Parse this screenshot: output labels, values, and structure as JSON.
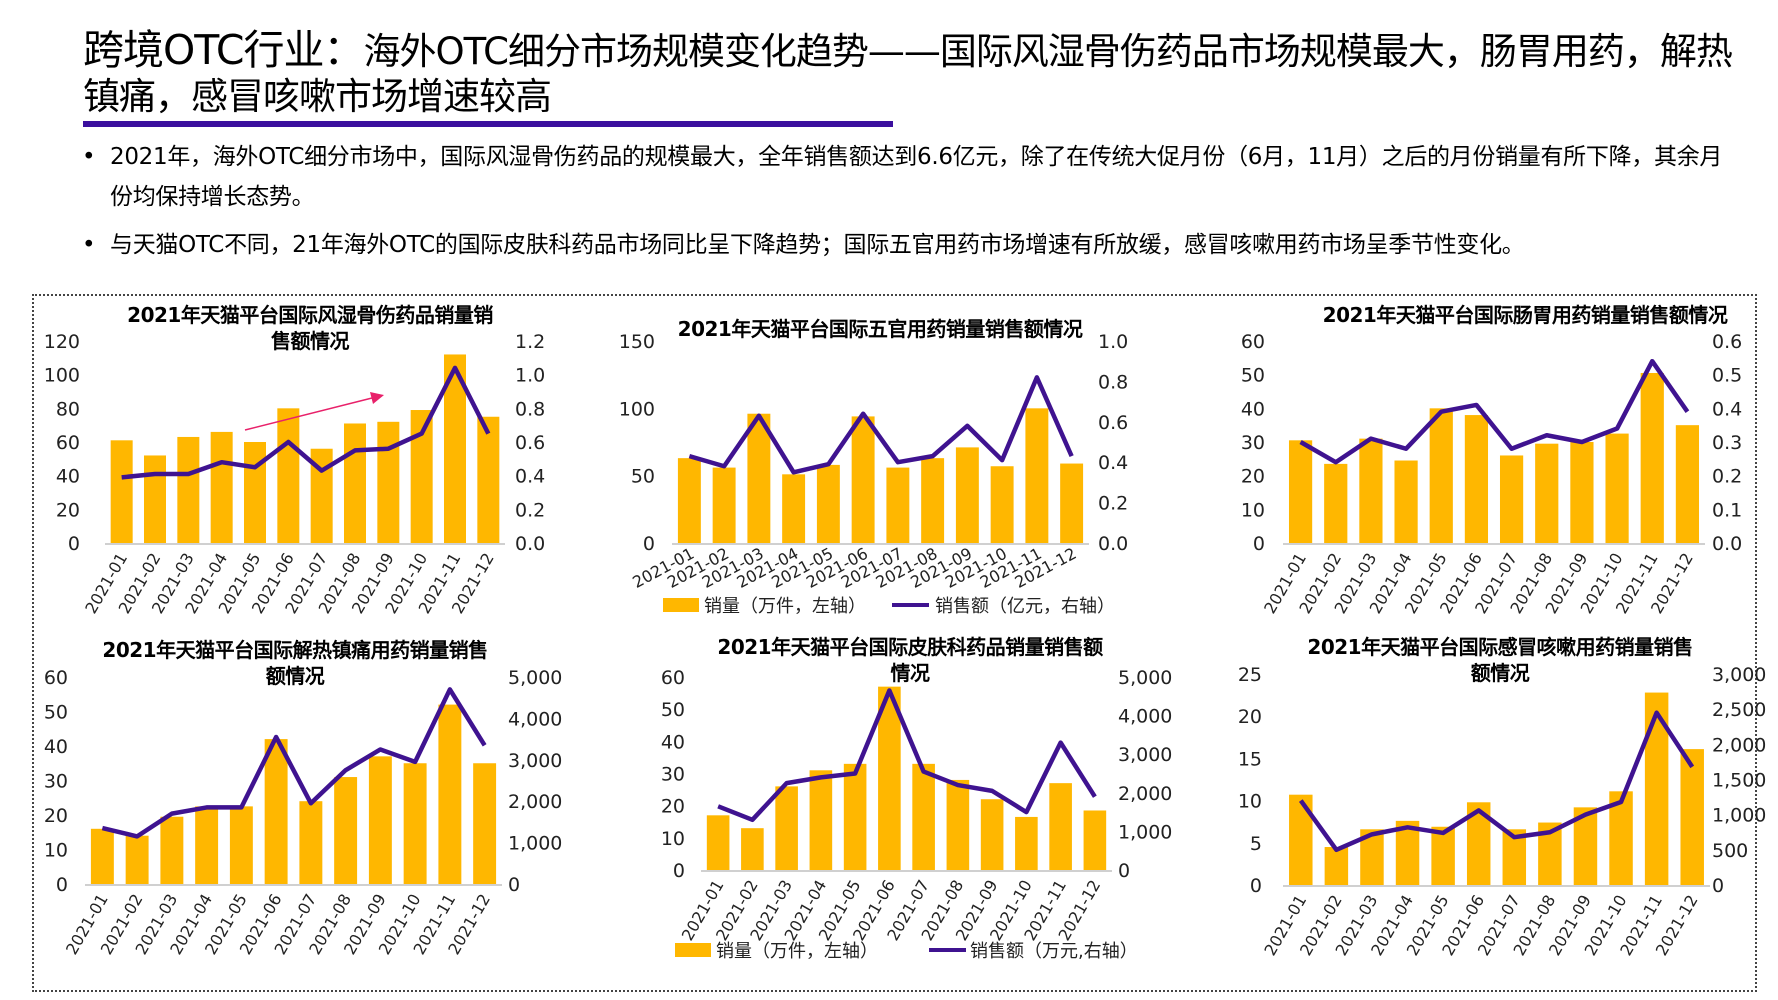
{
  "header": {
    "title_lead": "跨境OTC行业：",
    "title_rest": "海外OTC细分市场规模变化趋势——国际风湿骨伤药品市场规模最大，肠胃用药，解热镇痛，感冒咳嗽市场增速较高"
  },
  "bullets": [
    {
      "bullet": "•",
      "text": "2021年，海外OTC细分市场中，国际风湿骨伤药品的规模最大，全年销售额达到6.6亿元，除了在传统大促月份（6月，11月）之后的月份销量有所下降，其余月份均保持增长态势。"
    },
    {
      "bullet": "•",
      "text": "与天猫OTC不同，21年海外OTC的国际皮肤科药品市场同比呈下降趋势；国际五官用药市场增速有所放缓，感冒咳嗽用药市场呈季节性变化。"
    }
  ],
  "colors": {
    "bar": "#FFB700",
    "line": "#3F1390",
    "accent": "#3B0F9E",
    "arrow": "#E8216A"
  },
  "chart_data": [
    {
      "type": "bar+line",
      "title": "2021年天猫平台国际风湿骨伤药品销量销售额情况",
      "categories": [
        "2021-01",
        "2021-02",
        "2021-03",
        "2021-04",
        "2021-05",
        "2021-06",
        "2021-07",
        "2021-08",
        "2021-09",
        "2021-10",
        "2021-11",
        "2021-12"
      ],
      "series": [
        {
          "type": "bar",
          "axis": "left",
          "values": [
            61,
            52,
            63,
            66,
            60,
            80,
            56,
            71,
            72,
            79,
            112,
            75
          ]
        },
        {
          "type": "line",
          "axis": "right",
          "values": [
            0.39,
            0.41,
            0.41,
            0.48,
            0.45,
            0.6,
            0.43,
            0.55,
            0.56,
            0.65,
            1.04,
            0.65
          ]
        }
      ],
      "ylim_left": [
        0,
        120
      ],
      "yticks_left": [
        "0",
        "20",
        "40",
        "60",
        "80",
        "100",
        "120"
      ],
      "ylim_right": [
        0,
        1.2
      ],
      "yticks_right": [
        "0.0",
        "0.2",
        "0.4",
        "0.6",
        "0.8",
        "1.0",
        "1.2"
      ],
      "annotation": "upward-trend-arrow",
      "grid": false
    },
    {
      "type": "bar+line",
      "title": "2021年天猫平台国际五官用药销量销售额情况",
      "categories": [
        "2021-01",
        "2021-02",
        "2021-03",
        "2021-04",
        "2021-05",
        "2021-06",
        "2021-07",
        "2021-08",
        "2021-09",
        "2021-10",
        "2021-11",
        "2021-12"
      ],
      "series": [
        {
          "type": "bar",
          "axis": "left",
          "name": "销量（万件，左轴）",
          "values": [
            63,
            56,
            96,
            51,
            58,
            94,
            56,
            63,
            71,
            57,
            100,
            59
          ]
        },
        {
          "type": "line",
          "axis": "right",
          "name": "销售额（亿元，右轴）",
          "values": [
            0.43,
            0.38,
            0.63,
            0.35,
            0.39,
            0.64,
            0.4,
            0.43,
            0.58,
            0.41,
            0.82,
            0.43
          ]
        }
      ],
      "ylim_left": [
        0,
        150
      ],
      "yticks_left": [
        "0",
        "50",
        "100",
        "150"
      ],
      "ylim_right": [
        0,
        1.0
      ],
      "yticks_right": [
        "0.0",
        "0.2",
        "0.4",
        "0.6",
        "0.8",
        "1.0"
      ],
      "legend": "bottom",
      "grid": false
    },
    {
      "type": "bar+line",
      "title": "2021年天猫平台国际肠胃用药销量销售额情况",
      "categories": [
        "2021-01",
        "2021-02",
        "2021-03",
        "2021-04",
        "2021-05",
        "2021-06",
        "2021-07",
        "2021-08",
        "2021-09",
        "2021-10",
        "2021-11",
        "2021-12"
      ],
      "series": [
        {
          "type": "bar",
          "axis": "left",
          "values": [
            30.5,
            23.5,
            31,
            24.5,
            40,
            38,
            26,
            29.5,
            30,
            32.5,
            50.5,
            35
          ]
        },
        {
          "type": "line",
          "axis": "right",
          "values": [
            0.3,
            0.24,
            0.31,
            0.28,
            0.39,
            0.41,
            0.28,
            0.32,
            0.3,
            0.34,
            0.54,
            0.39
          ]
        }
      ],
      "ylim_left": [
        0,
        60
      ],
      "yticks_left": [
        "0",
        "10",
        "20",
        "30",
        "40",
        "50",
        "60"
      ],
      "ylim_right": [
        0,
        0.6
      ],
      "yticks_right": [
        "0.0",
        "0.1",
        "0.2",
        "0.3",
        "0.4",
        "0.5",
        "0.6"
      ],
      "grid": false
    },
    {
      "type": "bar+line",
      "title": "2021年天猫平台国际解热镇痛用药销量销售额情况",
      "categories": [
        "2021-01",
        "2021-02",
        "2021-03",
        "2021-04",
        "2021-05",
        "2021-06",
        "2021-07",
        "2021-08",
        "2021-09",
        "2021-10",
        "2021-11",
        "2021-12"
      ],
      "series": [
        {
          "type": "bar",
          "axis": "left",
          "values": [
            16,
            14,
            19.5,
            22.5,
            22.5,
            42,
            24,
            31,
            37,
            35,
            52,
            35
          ]
        },
        {
          "type": "line",
          "axis": "right",
          "values": [
            1350,
            1150,
            1700,
            1850,
            1850,
            3550,
            1950,
            2750,
            3250,
            2950,
            4700,
            3350
          ]
        }
      ],
      "ylim_left": [
        0,
        60
      ],
      "yticks_left": [
        "0",
        "10",
        "20",
        "30",
        "40",
        "50",
        "60"
      ],
      "ylim_right": [
        0,
        5000
      ],
      "yticks_right": [
        "0",
        "1,000",
        "2,000",
        "3,000",
        "4,000",
        "5,000"
      ],
      "grid": false
    },
    {
      "type": "bar+line",
      "title": "2021年天猫平台国际皮肤科药品销量销售额情况",
      "categories": [
        "2021-01",
        "2021-02",
        "2021-03",
        "2021-04",
        "2021-05",
        "2021-06",
        "2021-07",
        "2021-08",
        "2021-09",
        "2021-10",
        "2021-11",
        "2021-12"
      ],
      "series": [
        {
          "type": "bar",
          "axis": "left",
          "name": "销量（万件，左轴）",
          "values": [
            17,
            13,
            26,
            31,
            33,
            57,
            33,
            28,
            22,
            16.5,
            27,
            18.5
          ]
        },
        {
          "type": "line",
          "axis": "right",
          "name": "销售额（万元,右轴）",
          "values": [
            1650,
            1300,
            2250,
            2400,
            2500,
            4650,
            2550,
            2200,
            2050,
            1500,
            3300,
            1900
          ]
        }
      ],
      "ylim_left": [
        0,
        60
      ],
      "yticks_left": [
        "0",
        "10",
        "20",
        "30",
        "40",
        "50",
        "60"
      ],
      "ylim_right": [
        0,
        5000
      ],
      "yticks_right": [
        "0",
        "1,000",
        "2,000",
        "3,000",
        "4,000",
        "5,000"
      ],
      "legend": "bottom",
      "grid": false
    },
    {
      "type": "bar+line",
      "title": "2021年天猫平台国际感冒咳嗽用药销量销售额情况",
      "categories": [
        "2021-01",
        "2021-02",
        "2021-03",
        "2021-04",
        "2021-05",
        "2021-06",
        "2021-07",
        "2021-08",
        "2021-09",
        "2021-10",
        "2021-11",
        "2021-12"
      ],
      "series": [
        {
          "type": "bar",
          "axis": "left",
          "values": [
            10.7,
            4.5,
            6.6,
            7.6,
            6.9,
            9.8,
            6.6,
            7.4,
            9.2,
            11.1,
            22.8,
            16.1
          ]
        },
        {
          "type": "line",
          "axis": "right",
          "values": [
            1200,
            500,
            720,
            820,
            740,
            1060,
            680,
            750,
            1000,
            1180,
            2450,
            1680
          ]
        }
      ],
      "ylim_left": [
        0,
        25
      ],
      "yticks_left": [
        "0",
        "5",
        "10",
        "15",
        "20",
        "25"
      ],
      "ylim_right": [
        0,
        3000
      ],
      "yticks_right": [
        "0",
        "500",
        "1,000",
        "1,500",
        "2,000",
        "2,500",
        "3,000"
      ],
      "grid": false
    }
  ]
}
